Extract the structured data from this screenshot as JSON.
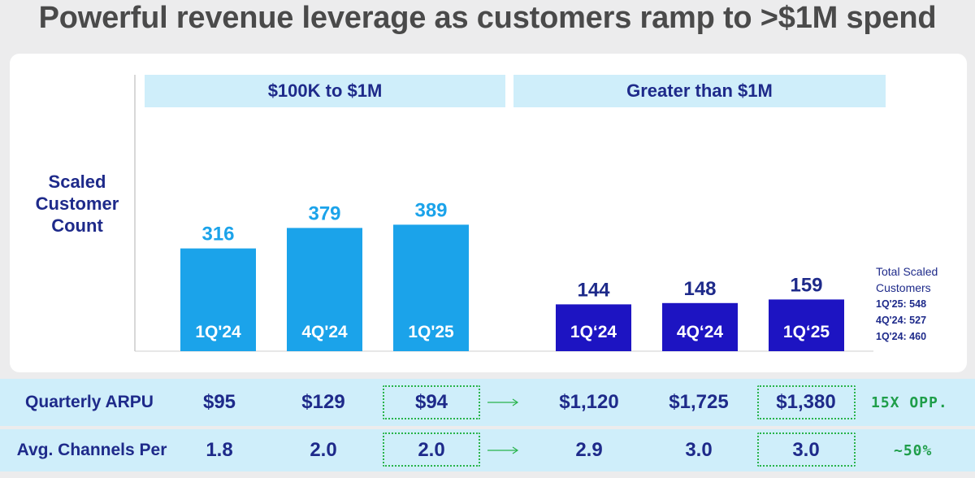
{
  "title": "Powerful revenue leverage as customers ramp to >$1M spend",
  "ylabel_lines": [
    "Scaled",
    "Customer",
    "Count"
  ],
  "side_note": {
    "title": "Total Scaled Customers",
    "items": [
      "1Q'25: 548",
      "4Q'24: 527",
      "1Q'24: 460"
    ]
  },
  "colors": {
    "light_bar": "#1ba3ea",
    "dark_bar": "#1d14c2",
    "light_value": "#1ba3ea",
    "dark_value": "#1e2a8a",
    "header_bg": "#cfeefa",
    "highlight_green": "#27b34a"
  },
  "chart_data": {
    "type": "bar",
    "ylabel": "Scaled Customer Count",
    "groups": [
      {
        "name": "$100K to $1M",
        "categories": [
          "1Q'24",
          "4Q'24",
          "1Q'25"
        ],
        "values": [
          316,
          379,
          389
        ],
        "color": "#1ba3ea"
      },
      {
        "name": "Greater than $1M",
        "categories": [
          "1Q‘24",
          "4Q‘24",
          "1Q‘25"
        ],
        "values": [
          144,
          148,
          159
        ],
        "color": "#1d14c2"
      }
    ]
  },
  "table": {
    "rows": [
      {
        "label": "Quarterly ARPU",
        "values": [
          "$95",
          "$129",
          "$94",
          "$1,120",
          "$1,725",
          "$1,380"
        ],
        "note": "15X OPP."
      },
      {
        "label": "Avg. Channels Per",
        "values": [
          "1.8",
          "2.0",
          "2.0",
          "2.9",
          "3.0",
          "3.0"
        ],
        "note": "~50%"
      }
    ]
  }
}
